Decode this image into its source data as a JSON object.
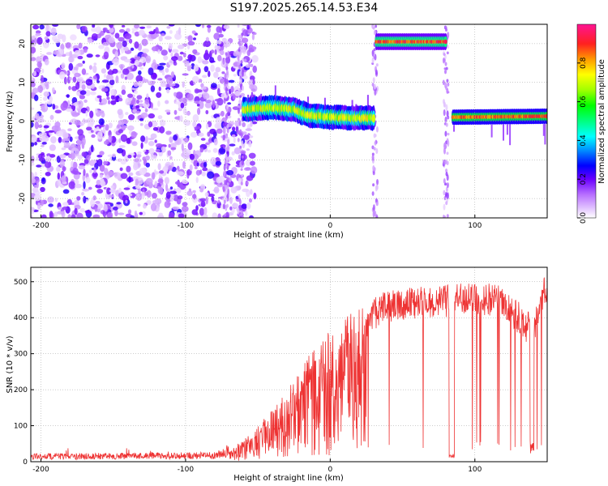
{
  "title": "S197.2025.265.14.53.E34",
  "chart_data": [
    {
      "type": "heatmap",
      "name": "spectrogram",
      "xlabel": "Height of straight line (km)",
      "ylabel": "Frequency (Hz)",
      "xlim": [
        -207,
        150
      ],
      "ylim": [
        -25,
        25
      ],
      "x_ticks": [
        -200,
        -100,
        0,
        100
      ],
      "y_ticks": [
        -20,
        -10,
        0,
        10,
        20
      ],
      "colorbar": {
        "label": "Normalized spectral amplitude",
        "range": [
          0,
          1
        ],
        "ticks": [
          0.0,
          0.2,
          0.4,
          0.6,
          0.8
        ]
      },
      "features": [
        {
          "label": "broadband noise",
          "x_range": [
            -207,
            -60
          ],
          "freq_range": [
            -25,
            25
          ],
          "amplitude": 0.15
        },
        {
          "label": "signal track",
          "x": [
            -60,
            -40,
            -25,
            -15,
            0,
            15,
            30
          ],
          "freq": [
            3,
            3.5,
            3,
            1.5,
            1,
            0.8,
            0.8
          ],
          "amplitude": 0.7
        },
        {
          "label": "aliased band",
          "x_range": [
            32,
            80
          ],
          "freq": 20.5,
          "amplitude": 0.95
        },
        {
          "label": "signal track",
          "x_range": [
            85,
            150
          ],
          "freq": 1,
          "amplitude": 0.9
        }
      ]
    },
    {
      "type": "line",
      "name": "snr",
      "xlabel": "Height of straight line (km)",
      "ylabel": "SNR (10 * v/v)",
      "xlim": [
        -207,
        150
      ],
      "ylim": [
        0,
        540
      ],
      "x_ticks": [
        -200,
        -100,
        0,
        100
      ],
      "y_ticks": [
        0,
        100,
        200,
        300,
        400,
        500
      ],
      "color": "#ee3333",
      "envelope": [
        {
          "x": -207,
          "snr": 15
        },
        {
          "x": -80,
          "snr": 18
        },
        {
          "x": -65,
          "snr": 35
        },
        {
          "x": -50,
          "snr": 80
        },
        {
          "x": -35,
          "snr": 130
        },
        {
          "x": -20,
          "snr": 200
        },
        {
          "x": -10,
          "snr": 250
        },
        {
          "x": 0,
          "snr": 280
        },
        {
          "x": 15,
          "snr": 320
        },
        {
          "x": 25,
          "snr": 380
        },
        {
          "x": 35,
          "snr": 430
        },
        {
          "x": 60,
          "snr": 440
        },
        {
          "x": 90,
          "snr": 450
        },
        {
          "x": 115,
          "snr": 450
        },
        {
          "x": 130,
          "snr": 400
        },
        {
          "x": 140,
          "snr": 360
        },
        {
          "x": 148,
          "snr": 470
        }
      ]
    }
  ]
}
